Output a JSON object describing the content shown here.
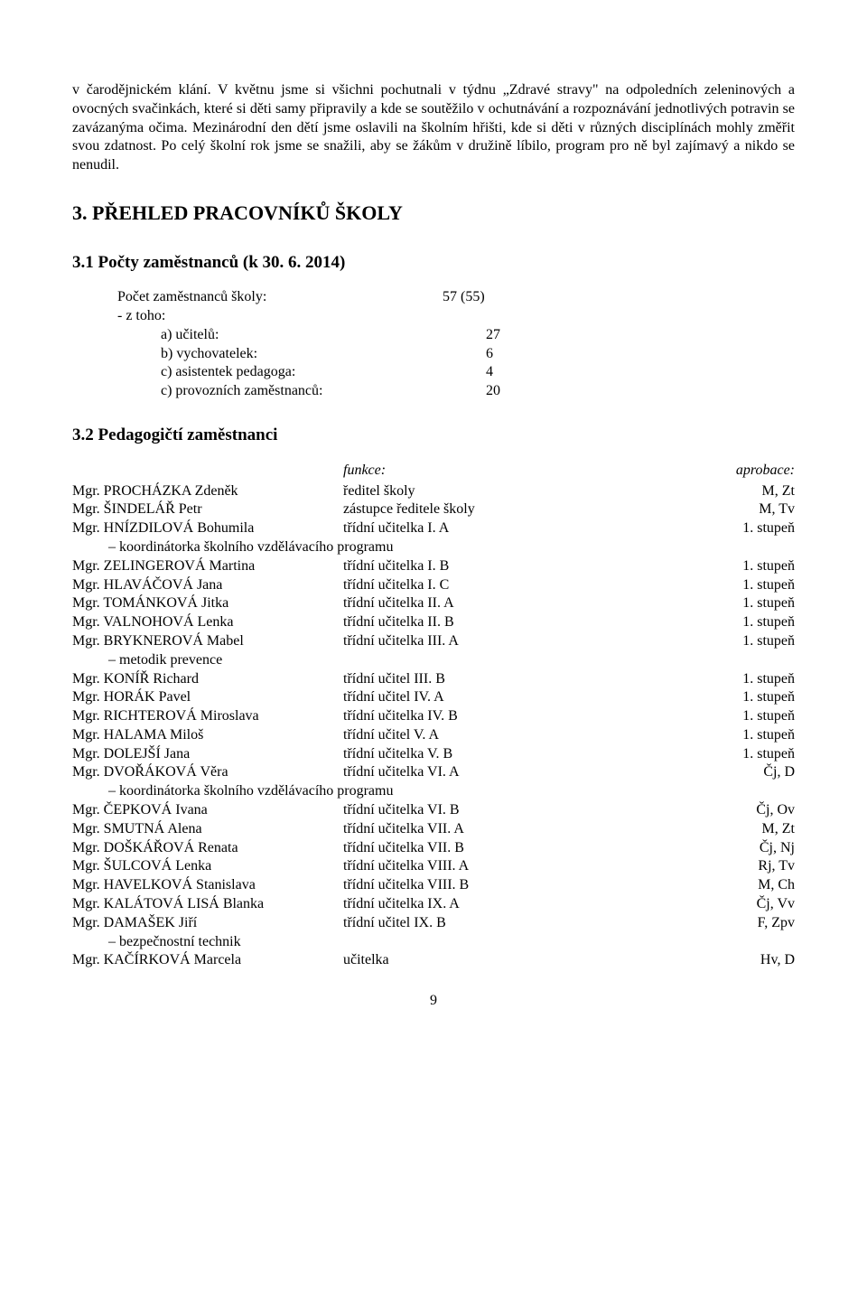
{
  "intro_paragraph": "v čarodějnickém klání. V květnu jsme si všichni pochutnali v týdnu „Zdravé stravy\" na odpoledních zeleninových a ovocných svačinkách, které si děti samy připravily a kde se soutěžilo v ochutnávání a rozpoznávání jednotlivých potravin se zavázanýma očima. Mezinárodní den dětí jsme oslavili na školním hřišti, kde si děti v různých disciplínách mohly změřit svou zdatnost. Po celý školní rok jsme se snažili, aby se žákům v družině líbilo, program pro ně byl zajímavý a nikdo se nenudil.",
  "section3_title": "3. PŘEHLED PRACOVNÍKŮ ŠKOLY",
  "sub31_title": "3.1 Počty zaměstnanců (k 30. 6. 2014)",
  "counts": {
    "total_label": "Počet zaměstnanců školy:",
    "total_value": "57 (55)",
    "ztoho_label": "- z toho:",
    "a_label": "a) učitelů:",
    "a_value": "27",
    "b_label": "b) vychovatelek:",
    "b_value": "6",
    "c_label": "c) asistentek pedagoga:",
    "c_value": "4",
    "d_label": "c) provozních zaměstnanců:",
    "d_value": "20"
  },
  "sub32_title": "3.2 Pedagogičtí zaměstnanci",
  "staff_header": {
    "role": "funkce:",
    "appr": "aprobace:"
  },
  "staff": [
    {
      "name": "Mgr. PROCHÁZKA Zdeněk",
      "role": "ředitel školy",
      "appr": "M, Zt",
      "note": ""
    },
    {
      "name": "Mgr. ŠINDELÁŘ Petr",
      "role": "zástupce ředitele školy",
      "appr": "M, Tv",
      "note": ""
    },
    {
      "name": "Mgr. HNÍZDILOVÁ Bohumila",
      "role": "třídní učitelka I. A",
      "appr": "1. stupeň",
      "note": "– koordinátorka školního vzdělávacího programu"
    },
    {
      "name": "Mgr. ZELINGEROVÁ Martina",
      "role": "třídní učitelka I. B",
      "appr": "1. stupeň",
      "note": ""
    },
    {
      "name": "Mgr. HLAVÁČOVÁ Jana",
      "role": "třídní učitelka I. C",
      "appr": "1. stupeň",
      "note": ""
    },
    {
      "name": "Mgr. TOMÁNKOVÁ Jitka",
      "role": "třídní učitelka II. A",
      "appr": "1. stupeň",
      "note": ""
    },
    {
      "name": "Mgr. VALNOHOVÁ Lenka",
      "role": "třídní učitelka II. B",
      "appr": "1. stupeň",
      "note": ""
    },
    {
      "name": "Mgr. BRYKNEROVÁ Mabel",
      "role": "třídní učitelka III. A",
      "appr": "1. stupeň",
      "note": "– metodik prevence"
    },
    {
      "name": "Mgr. KONÍŘ Richard",
      "role": "třídní učitel III. B",
      "appr": "1. stupeň",
      "note": ""
    },
    {
      "name": "Mgr. HORÁK Pavel",
      "role": "třídní učitel IV. A",
      "appr": "1. stupeň",
      "note": ""
    },
    {
      "name": "Mgr. RICHTEROVÁ Miroslava",
      "role": "třídní učitelka IV. B",
      "appr": "1. stupeň",
      "note": ""
    },
    {
      "name": "Mgr. HALAMA Miloš",
      "role": "třídní učitel V. A",
      "appr": "1. stupeň",
      "note": ""
    },
    {
      "name": "Mgr. DOLEJŠÍ Jana",
      "role": "třídní učitelka V. B",
      "appr": "1. stupeň",
      "note": ""
    },
    {
      "name": "Mgr. DVOŘÁKOVÁ Věra",
      "role": "třídní učitelka VI. A",
      "appr": "Čj, D",
      "note": "– koordinátorka školního vzdělávacího programu"
    },
    {
      "name": "Mgr. ČEPKOVÁ Ivana",
      "role": "třídní učitelka VI. B",
      "appr": "Čj, Ov",
      "note": ""
    },
    {
      "name": "Mgr. SMUTNÁ Alena",
      "role": "třídní učitelka VII. A",
      "appr": "M, Zt",
      "note": ""
    },
    {
      "name": "Mgr. DOŠKÁŘOVÁ Renata",
      "role": "třídní učitelka VII. B",
      "appr": "Čj, Nj",
      "note": ""
    },
    {
      "name": "Mgr. ŠULCOVÁ Lenka",
      "role": "třídní učitelka VIII. A",
      "appr": "Rj, Tv",
      "note": ""
    },
    {
      "name": "Mgr. HAVELKOVÁ Stanislava",
      "role": "třídní učitelka VIII. B",
      "appr": "M, Ch",
      "note": ""
    },
    {
      "name": "Mgr. KALÁTOVÁ LISÁ Blanka",
      "role": "třídní učitelka IX. A",
      "appr": "Čj, Vv",
      "note": ""
    },
    {
      "name": "Mgr. DAMAŠEK Jiří",
      "role": "třídní učitel IX. B",
      "appr": "F, Zpv",
      "note": "– bezpečnostní technik"
    },
    {
      "name": "Mgr. KAČÍRKOVÁ Marcela",
      "role": "učitelka",
      "appr": "Hv, D",
      "note": ""
    }
  ],
  "page_number": "9"
}
